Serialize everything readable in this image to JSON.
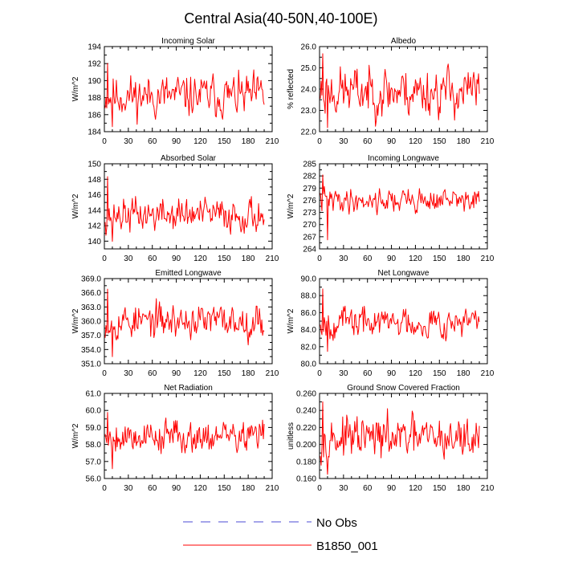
{
  "figure_title": "Central Asia(40-50N,40-100E)",
  "legend": [
    {
      "label": "No Obs",
      "color": "#4b4bd6",
      "style": "dashed"
    },
    {
      "label": "B1850_001",
      "color": "#ff0000",
      "style": "solid"
    }
  ],
  "chart_data": [
    {
      "type": "line",
      "title": "Incoming Solar",
      "ylabel": "W/m^2",
      "xlabel": "",
      "xlim": [
        0,
        210
      ],
      "xticks": [
        0,
        30,
        60,
        90,
        120,
        150,
        180,
        210
      ],
      "ylim": [
        184,
        194
      ],
      "yticks": [
        "184",
        "186",
        "188",
        "190",
        "192",
        "194"
      ],
      "series": [
        {
          "name": "B1850_001",
          "mean": 188.2,
          "amplitude": 1.9,
          "min_value": 184.4,
          "max_value": 192.3,
          "n": 200,
          "seed": 11
        }
      ]
    },
    {
      "type": "line",
      "title": "Albedo",
      "ylabel": "% reflected",
      "xlabel": "",
      "xlim": [
        0,
        210
      ],
      "xticks": [
        0,
        30,
        60,
        90,
        120,
        150,
        180,
        210
      ],
      "ylim": [
        22,
        26
      ],
      "yticks": [
        "22.0",
        "23.0",
        "24.0",
        "25.0",
        "26.0"
      ],
      "series": [
        {
          "name": "B1850_001",
          "mean": 23.9,
          "amplitude": 0.9,
          "min_value": 22.1,
          "max_value": 25.8,
          "n": 200,
          "seed": 23
        }
      ]
    },
    {
      "type": "line",
      "title": "Absorbed Solar",
      "ylabel": "W/m^2",
      "xlabel": "",
      "xlim": [
        0,
        210
      ],
      "xticks": [
        0,
        30,
        60,
        90,
        120,
        150,
        180,
        210
      ],
      "ylim": [
        139,
        150
      ],
      "yticks": [
        "140",
        "142",
        "144",
        "146",
        "148",
        "150"
      ],
      "series": [
        {
          "name": "B1850_001",
          "mean": 143.4,
          "amplitude": 1.7,
          "min_value": 139.8,
          "max_value": 148.6,
          "n": 200,
          "seed": 37
        }
      ]
    },
    {
      "type": "line",
      "title": "Incoming Longwave",
      "ylabel": "W/m^2",
      "xlabel": "",
      "xlim": [
        0,
        210
      ],
      "xticks": [
        0,
        30,
        60,
        90,
        120,
        150,
        180,
        210
      ],
      "ylim": [
        264,
        285
      ],
      "yticks": [
        "264",
        "267",
        "270",
        "273",
        "276",
        "279",
        "282",
        "285"
      ],
      "series": [
        {
          "name": "B1850_001",
          "mean": 276.0,
          "amplitude": 2.3,
          "min_value": 266.0,
          "max_value": 282.6,
          "n": 200,
          "seed": 41
        }
      ]
    },
    {
      "type": "line",
      "title": "Emitted Longwave",
      "ylabel": "W/m^2",
      "xlabel": "",
      "xlim": [
        0,
        210
      ],
      "xticks": [
        0,
        30,
        60,
        90,
        120,
        150,
        180,
        210
      ],
      "ylim": [
        351,
        369
      ],
      "yticks": [
        "351.0",
        "354.0",
        "357.0",
        "360.0",
        "363.0",
        "366.0",
        "369.0"
      ],
      "series": [
        {
          "name": "B1850_001",
          "mean": 360.0,
          "amplitude": 2.8,
          "min_value": 352.2,
          "max_value": 367.2,
          "n": 200,
          "seed": 53
        }
      ]
    },
    {
      "type": "line",
      "title": "Net Longwave",
      "ylabel": "W/m^2",
      "xlabel": "",
      "xlim": [
        0,
        210
      ],
      "xticks": [
        0,
        30,
        60,
        90,
        120,
        150,
        180,
        210
      ],
      "ylim": [
        80,
        90
      ],
      "yticks": [
        "80.0",
        "82.0",
        "84.0",
        "86.0",
        "88.0",
        "90.0"
      ],
      "series": [
        {
          "name": "B1850_001",
          "mean": 84.9,
          "amplitude": 1.4,
          "min_value": 81.3,
          "max_value": 89.0,
          "n": 200,
          "seed": 67
        }
      ]
    },
    {
      "type": "line",
      "title": "Net Radiation",
      "ylabel": "W/m^2",
      "xlabel": "",
      "xlim": [
        0,
        210
      ],
      "xticks": [
        0,
        30,
        60,
        90,
        120,
        150,
        180,
        210
      ],
      "ylim": [
        56,
        61
      ],
      "yticks": [
        "56.0",
        "57.0",
        "58.0",
        "59.0",
        "60.0",
        "61.0"
      ],
      "series": [
        {
          "name": "B1850_001",
          "mean": 58.5,
          "amplitude": 0.75,
          "min_value": 56.5,
          "max_value": 60.0,
          "n": 200,
          "seed": 79
        }
      ]
    },
    {
      "type": "line",
      "title": "Ground Snow Covered Fraction",
      "ylabel": "unitless",
      "xlabel": "",
      "xlim": [
        0,
        210
      ],
      "xticks": [
        0,
        30,
        60,
        90,
        120,
        150,
        180,
        210
      ],
      "ylim": [
        0.16,
        0.26
      ],
      "yticks": [
        "0.160",
        "0.180",
        "0.200",
        "0.220",
        "0.240",
        "0.260"
      ],
      "series": [
        {
          "name": "B1850_001",
          "mean": 0.207,
          "amplitude": 0.019,
          "min_value": 0.163,
          "max_value": 0.253,
          "n": 200,
          "seed": 97
        }
      ]
    }
  ]
}
